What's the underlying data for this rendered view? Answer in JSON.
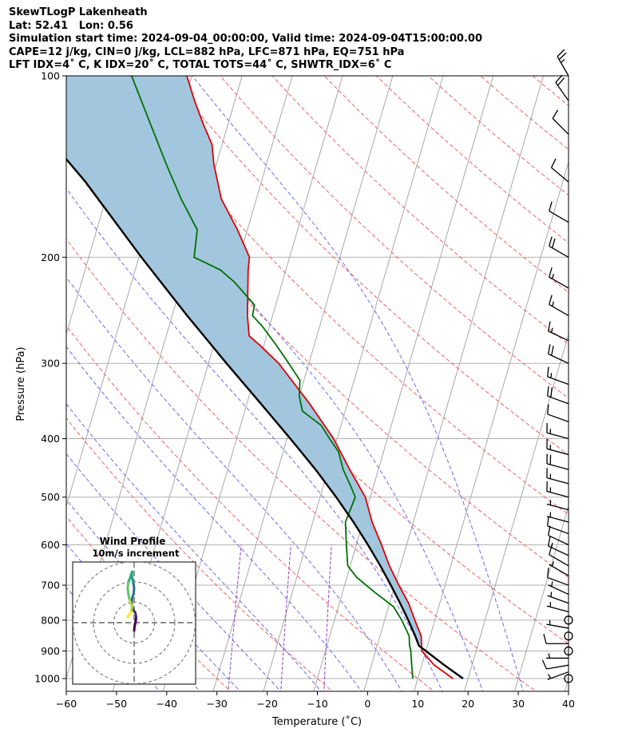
{
  "chart_data": {
    "type": "line",
    "title_lines": [
      "SkewTLogP Lakenheath",
      "Lat: 52.41   Lon: 0.56",
      "Simulation start time: 2024-09-04_00:00:00, Valid time: 2024-09-04T15:00:00.00",
      "CAPE=12 j/kg, CIN=0 j/kg, LCL=882 hPa, LFC=871 hPa, EQ=751 hPa",
      "LFT IDX=4˚ C, K IDX=20˚ C, TOTAL TOTS=44˚ C, SHWTR_IDX=6˚ C"
    ],
    "xlabel": "Temperature (˚C)",
    "ylabel": "Pressure (hPa)",
    "xlim": [
      -60,
      40
    ],
    "ylim": [
      1050,
      100
    ],
    "yscale": "log",
    "skew_deg_per_decade": 35,
    "xticks": [
      "−60",
      "−50",
      "−40",
      "−30",
      "−20",
      "−10",
      "0",
      "10",
      "20",
      "30",
      "40"
    ],
    "xtick_values": [
      -60,
      -50,
      -40,
      -30,
      -20,
      -10,
      0,
      10,
      20,
      30,
      40
    ],
    "yticks": [
      "1000",
      "900",
      "800",
      "700",
      "600",
      "500",
      "400",
      "300",
      "200",
      "100"
    ],
    "ytick_values": [
      1000,
      900,
      800,
      700,
      600,
      500,
      400,
      300,
      200,
      100
    ],
    "series": [
      {
        "role": "temperature",
        "color": "#e00000",
        "p": [
          1000,
          950,
          900,
          850,
          800,
          750,
          700,
          650,
          600,
          550,
          500,
          450,
          400,
          350,
          300,
          280,
          270,
          250,
          230,
          210,
          200,
          180,
          160,
          140,
          130,
          120,
          110,
          100
        ],
        "t": [
          17.0,
          12.5,
          9.2,
          8.2,
          6.0,
          3.8,
          0.8,
          -2.2,
          -5.0,
          -8.2,
          -11.0,
          -15.7,
          -20.7,
          -27.5,
          -36.0,
          -40.8,
          -43.5,
          -45.0,
          -46.2,
          -47.5,
          -48.0,
          -52.0,
          -57.0,
          -60.5,
          -62.0,
          -65.0,
          -68.0,
          -71.0
        ]
      },
      {
        "role": "dewpoint",
        "color": "#007000",
        "p": [
          1000,
          950,
          900,
          880,
          850,
          800,
          760,
          720,
          680,
          650,
          600,
          550,
          500,
          480,
          450,
          420,
          400,
          380,
          360,
          340,
          320,
          300,
          280,
          260,
          250,
          240,
          220,
          210,
          200,
          180,
          160,
          140,
          120,
          100
        ],
        "t": [
          9.0,
          8.0,
          7.0,
          6.4,
          5.8,
          3.4,
          1.0,
          -3.5,
          -8.0,
          -10.5,
          -12.0,
          -13.5,
          -13.0,
          -14.5,
          -17.0,
          -19.0,
          -21.5,
          -24.0,
          -28.5,
          -30.0,
          -30.8,
          -34.0,
          -37.5,
          -41.5,
          -44.0,
          -44.2,
          -49.5,
          -53.0,
          -59.0,
          -60.0,
          -65.0,
          -70.0,
          -75.5,
          -82.0
        ]
      },
      {
        "role": "parcel",
        "color": "#000000",
        "p": [
          1000,
          950,
          900,
          882,
          850,
          800,
          750,
          700,
          650,
          600,
          550,
          500,
          450,
          400,
          350,
          300,
          250,
          200,
          150,
          100
        ],
        "t": [
          19.0,
          14.5,
          10.0,
          8.3,
          7.0,
          4.7,
          2.1,
          -0.8,
          -4.0,
          -7.7,
          -11.9,
          -16.8,
          -22.5,
          -29.3,
          -37.2,
          -46.4,
          -57.0,
          -69.5,
          -85.0,
          -109.0
        ]
      }
    ],
    "cape_fill": {
      "color": "#a3c6df",
      "between": [
        "parcel",
        "temperature"
      ]
    },
    "wind_barbs": {
      "p": [
        1000,
        975,
        950,
        925,
        900,
        875,
        850,
        825,
        800,
        775,
        750,
        725,
        700,
        675,
        650,
        625,
        600,
        575,
        550,
        525,
        500,
        475,
        450,
        425,
        400,
        375,
        350,
        325,
        300,
        275,
        250,
        225,
        200,
        175,
        150,
        125,
        110,
        100
      ],
      "speed_kt": [
        0,
        5,
        10,
        5,
        0,
        10,
        0,
        5,
        0,
        5,
        5,
        5,
        10,
        5,
        10,
        15,
        10,
        10,
        5,
        5,
        15,
        15,
        20,
        15,
        15,
        10,
        20,
        15,
        20,
        15,
        15,
        15,
        20,
        10,
        10,
        10,
        20,
        25
      ],
      "dir_deg": [
        0,
        250,
        260,
        270,
        0,
        270,
        0,
        280,
        0,
        285,
        290,
        295,
        290,
        300,
        300,
        295,
        295,
        290,
        285,
        285,
        285,
        285,
        285,
        285,
        285,
        290,
        290,
        290,
        295,
        295,
        300,
        300,
        300,
        300,
        310,
        315,
        325,
        330
      ]
    },
    "inset": {
      "title": "Wind Profile",
      "subtitle": "10m/s increment",
      "rings_ms": [
        10,
        20,
        30
      ],
      "colormap": "viridis",
      "hodograph_uv": [
        [
          0.0,
          -4.0
        ],
        [
          0.2,
          -2.0
        ],
        [
          0.8,
          1.0
        ],
        [
          1.0,
          3.0
        ],
        [
          0.5,
          5.0
        ],
        [
          -0.8,
          7.0
        ],
        [
          -1.2,
          9.5
        ],
        [
          -1.0,
          12.0
        ],
        [
          -0.3,
          14.0
        ],
        [
          0.0,
          17.0
        ],
        [
          -0.5,
          20.0
        ],
        [
          -1.2,
          23.0
        ],
        [
          -1.0,
          25.0
        ]
      ],
      "hodograph_end_uv": [
        [
          -1.0,
          25.0
        ],
        [
          -2.0,
          22.0
        ],
        [
          -2.8,
          20.0
        ],
        [
          -3.2,
          17.0
        ],
        [
          -2.8,
          14.0
        ],
        [
          -2.2,
          11.0
        ],
        [
          -1.0,
          8.0
        ],
        [
          -1.5,
          5.0
        ],
        [
          -2.8,
          3.5
        ],
        [
          -3.2,
          2.8
        ]
      ]
    }
  }
}
